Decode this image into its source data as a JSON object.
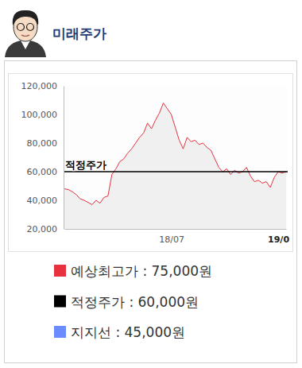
{
  "header": {
    "title": "미래주가"
  },
  "chart_data": {
    "type": "line",
    "categories": [
      null,
      null,
      null,
      null,
      null,
      null,
      null,
      null,
      null,
      null,
      null,
      null,
      null,
      null,
      null,
      null,
      null,
      null,
      null,
      null,
      null,
      null,
      null,
      null,
      null,
      null,
      null,
      "18/07",
      null,
      null,
      null,
      null,
      null,
      null,
      null,
      null,
      null,
      null,
      null,
      null,
      null,
      null,
      null,
      null,
      null,
      null,
      null,
      null,
      null,
      null,
      null,
      null,
      null,
      null,
      "19/0",
      null,
      null
    ],
    "series": [
      {
        "color": "#e8313f",
        "values": [
          48000,
          47500,
          46000,
          44000,
          41000,
          40000,
          38500,
          37000,
          40000,
          38000,
          42000,
          43000,
          58000,
          62000,
          67000,
          69000,
          73000,
          76000,
          80000,
          84000,
          87000,
          94000,
          90000,
          96000,
          101000,
          108000,
          104000,
          100000,
          91000,
          82000,
          76000,
          84000,
          81000,
          82000,
          79000,
          80000,
          77000,
          75000,
          69000,
          63000,
          60000,
          62000,
          58000,
          61000,
          59000,
          60000,
          63000,
          57000,
          53000,
          54000,
          52000,
          53000,
          49000,
          56000,
          60000,
          59000,
          60000
        ]
      }
    ],
    "ylim": [
      20000,
      120000
    ],
    "yticks": [
      {
        "value": 20000,
        "label": "20,000"
      },
      {
        "value": 40000,
        "label": "40,000"
      },
      {
        "value": 60000,
        "label": "60,000"
      },
      {
        "value": 80000,
        "label": "80,000"
      },
      {
        "value": 100000,
        "label": "100,000"
      },
      {
        "value": 120000,
        "label": "120,000"
      }
    ],
    "grid": false,
    "reference_lines": [
      {
        "name": "적정주가",
        "value": 60000,
        "color": "#000000"
      }
    ],
    "legend_items": [
      {
        "label": "예상최고가 : 75,000원",
        "value": 75000,
        "color": "#e8313f"
      },
      {
        "label": "적정주가 : 60,000원",
        "value": 60000,
        "color": "#000000"
      },
      {
        "label": "지지선 : 45,000원",
        "value": 45000,
        "color": "#6b8cff"
      }
    ]
  }
}
